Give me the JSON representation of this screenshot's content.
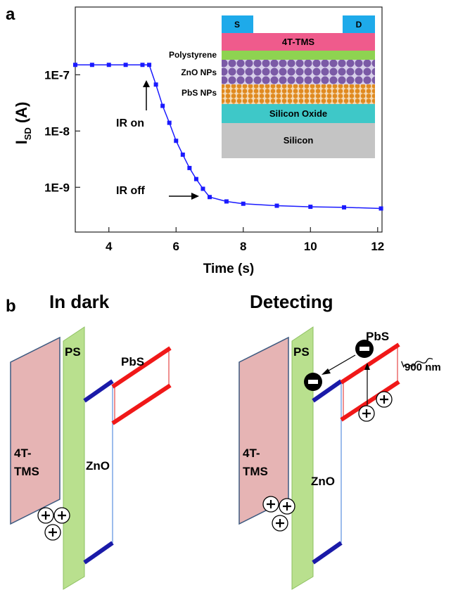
{
  "chart_data": {
    "type": "line",
    "panel_label": "a",
    "x_label": "Time (s)",
    "y_label": "I",
    "y_label_sub": "SD",
    "y_label_unit": "(A)",
    "x": [
      3,
      3.5,
      4,
      4.5,
      5,
      5.2,
      5.4,
      5.6,
      5.8,
      6,
      6.2,
      6.4,
      6.6,
      6.8,
      7,
      7.5,
      8,
      9,
      10,
      11,
      12.1
    ],
    "series": [
      {
        "name": "ISD",
        "color": "#1a1aff",
        "values": [
          1.5e-07,
          1.5e-07,
          1.5e-07,
          1.5e-07,
          1.5e-07,
          1.5e-07,
          6.7e-08,
          2.8e-08,
          1.4e-08,
          6.7e-09,
          3.8e-09,
          2.2e-09,
          1.4e-09,
          9.4e-10,
          6.7e-10,
          5.6e-10,
          5.1e-10,
          4.7e-10,
          4.5e-10,
          4.4e-10,
          4.2e-10
        ]
      }
    ],
    "xlim": [
      3,
      12.13
    ],
    "xticks": [
      4,
      6,
      8,
      10,
      12
    ],
    "ylim": [
      1.6e-10,
      1.6e-06
    ],
    "log_y": true,
    "yticks": [
      {
        "value": 1e-09,
        "label": "1E-9"
      },
      {
        "value": 1e-08,
        "label": "1E-8"
      },
      {
        "value": 1e-07,
        "label": "1E-7"
      }
    ],
    "annotations": {
      "ir_on": "IR on",
      "ir_off": "IR off"
    },
    "inset": {
      "source": "S",
      "drain": "D",
      "semiconductor": "4T-TMS",
      "polystyrene": "Polystyrene",
      "zno": "ZnO NPs",
      "pbs": "PbS NPs",
      "oxide": "Silicon Oxide",
      "silicon": "Silicon"
    }
  },
  "panel_b": {
    "label": "b",
    "left": {
      "title": "In dark",
      "ps": "PS",
      "pbs": "PbS",
      "donor_1": "4T-",
      "donor_2": "TMS",
      "zno": "ZnO"
    },
    "right": {
      "title": "Detecting",
      "ps": "PS",
      "pbs": "PbS",
      "donor_1": "4T-",
      "donor_2": "TMS",
      "zno": "ZnO",
      "light": "900 nm"
    }
  }
}
